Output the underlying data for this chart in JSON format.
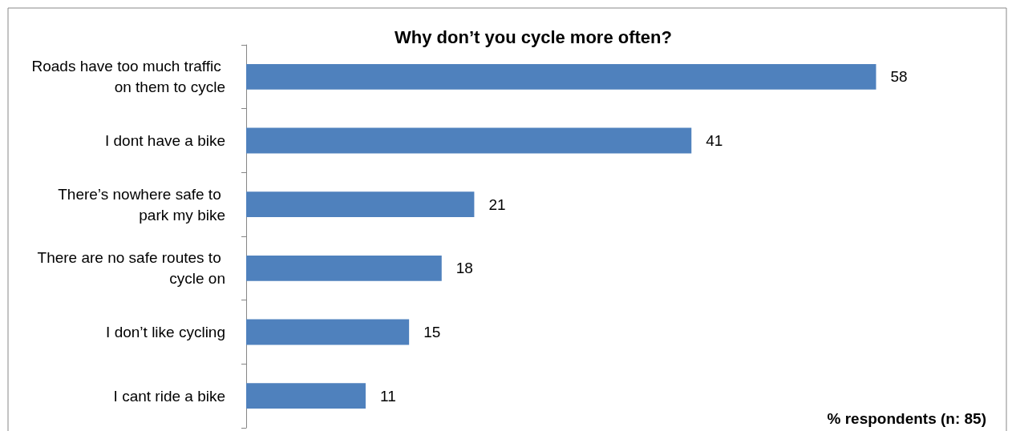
{
  "chart_data": {
    "type": "bar",
    "orientation": "horizontal",
    "title": "Why don’t you cycle more often?",
    "categories": [
      "Roads have too much traffic on them to cycle",
      "I dont have a bike",
      "There’s nowhere safe to park my bike",
      "There are no safe routes to cycle on",
      "I don’t like cycling",
      "I cant ride a bike"
    ],
    "values": [
      58,
      41,
      21,
      18,
      15,
      11
    ],
    "color": "#4f81bd",
    "xlim": [
      0,
      70
    ],
    "data_labels": true,
    "tick_labels": "y",
    "annotations": [
      "% respondents (n: 85)"
    ]
  }
}
